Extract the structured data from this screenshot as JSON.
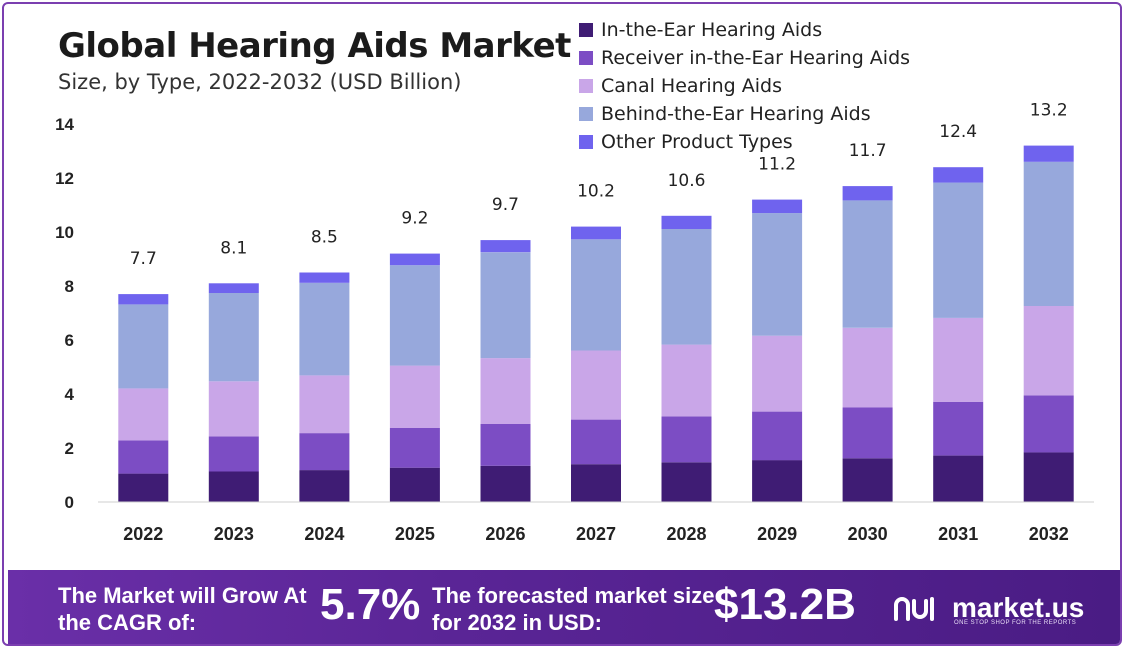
{
  "header": {
    "title": "Global Hearing Aids Market",
    "subtitle": "Size, by Type, 2022-2032 (USD Billion)"
  },
  "chart_data": {
    "type": "bar",
    "stacked": true,
    "categories": [
      "2022",
      "2023",
      "2024",
      "2025",
      "2026",
      "2027",
      "2028",
      "2029",
      "2030",
      "2031",
      "2032"
    ],
    "totals": [
      "7.7",
      "8.1",
      "8.5",
      "9.2",
      "9.7",
      "10.2",
      "10.6",
      "11.2",
      "11.7",
      "12.4",
      "13.2"
    ],
    "series": [
      {
        "name": "In-the-Ear Hearing Aids",
        "color": "#3f1c74",
        "values": [
          1.05,
          1.13,
          1.18,
          1.27,
          1.34,
          1.4,
          1.47,
          1.55,
          1.62,
          1.72,
          1.84
        ]
      },
      {
        "name": "Receiver in-the-Ear Hearing Aids",
        "color": "#7c4dc4",
        "values": [
          1.23,
          1.3,
          1.37,
          1.47,
          1.55,
          1.65,
          1.7,
          1.8,
          1.88,
          1.99,
          2.11
        ]
      },
      {
        "name": "Canal Hearing Aids",
        "color": "#c9a6e8",
        "values": [
          1.93,
          2.04,
          2.14,
          2.31,
          2.44,
          2.56,
          2.66,
          2.81,
          2.95,
          3.11,
          3.31
        ]
      },
      {
        "name": "Behind-the-Ear Hearing Aids",
        "color": "#97a8dc",
        "values": [
          3.11,
          3.27,
          3.43,
          3.72,
          3.92,
          4.12,
          4.28,
          4.54,
          4.72,
          5.01,
          5.34
        ]
      },
      {
        "name": "Other Product Types",
        "color": "#6f63ee",
        "values": [
          0.38,
          0.36,
          0.38,
          0.43,
          0.45,
          0.47,
          0.49,
          0.5,
          0.53,
          0.57,
          0.6
        ]
      }
    ],
    "yticks": [
      "0",
      "2",
      "4",
      "6",
      "8",
      "10",
      "12",
      "14"
    ],
    "ylim": [
      0,
      14
    ],
    "grid": false,
    "legend": "top-right"
  },
  "footer": {
    "grow_text": "The Market will Grow At the CAGR of:",
    "cagr": "5.7%",
    "forecast_text": "The forecasted market size for 2032 in USD:",
    "size": "$13.2B",
    "brand": "market.us",
    "tagline": "ONE STOP SHOP FOR THE REPORTS",
    "brand_icon": "market-us-logo"
  }
}
